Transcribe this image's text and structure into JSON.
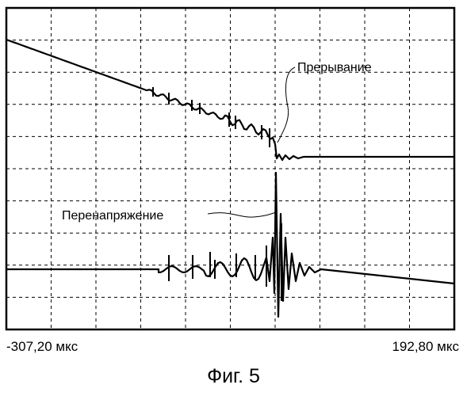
{
  "chart_data": {
    "type": "line",
    "x_range": {
      "min_label": "-307,20 мкс",
      "max_label": "192,80 мкс"
    },
    "grid": {
      "divisions_x": 10,
      "divisions_y": 10,
      "style": "dashed"
    },
    "annotations": [
      {
        "name": "interruption",
        "text": "Прерывание"
      },
      {
        "name": "overvoltage",
        "text": "Перенапряжение"
      }
    ],
    "series": [
      {
        "name": "current",
        "description": "ramp down, step drop at interruption then flat"
      },
      {
        "name": "voltage",
        "description": "flat near zero, transient spike at interruption then slight decline"
      }
    ],
    "color": "#000000"
  },
  "caption": "Фиг. 5"
}
